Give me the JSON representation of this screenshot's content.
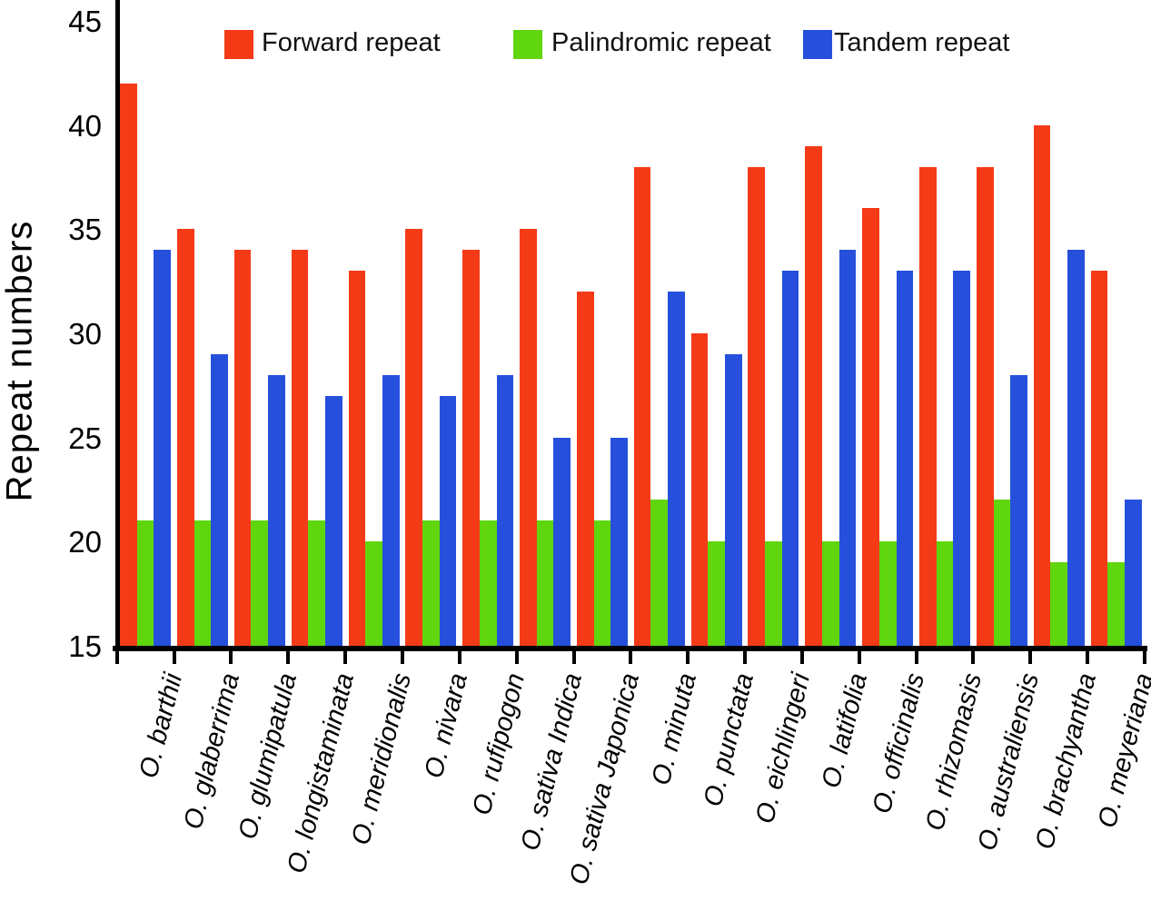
{
  "ylabel_text": "Repeat numbers",
  "legend": {
    "items": [
      {
        "label": "Forward repeat",
        "color": "#f53a18"
      },
      {
        "label": "Palindromic repeat",
        "color": "#5fd60e"
      },
      {
        "label": "Tandem repeat",
        "color": "#2650dc"
      }
    ]
  },
  "axis": {
    "y_tick_labels": [
      "45",
      "40",
      "35",
      "30",
      "25",
      "20",
      "15"
    ]
  },
  "chart_data": {
    "type": "bar",
    "title": "",
    "xlabel": "",
    "ylabel": "Repeat numbers",
    "ylim": [
      15,
      45
    ],
    "yticks": [
      45,
      40,
      35,
      30,
      25,
      20,
      15
    ],
    "grid": false,
    "legend_position": "top",
    "categories": [
      "O. barthii",
      "O. glaberrima",
      "O. glumipatula",
      "O. longistaminata",
      "O. meridionalis",
      "O. nivara",
      "O. rufipogon",
      "O. sativa Indica",
      "O. sativa Japonica",
      "O. minuta",
      "O. punctata",
      "O. eichlingeri",
      "O. latifolia",
      "O. officinalis",
      "O. rhizomasis",
      "O. australiensis",
      "O. brachyantha",
      "O. meyeriana"
    ],
    "series": [
      {
        "name": "Forward repeat",
        "color": "#f53a18",
        "values": [
          42,
          35,
          34,
          34,
          33,
          35,
          34,
          35,
          32,
          38,
          30,
          38,
          39,
          36,
          38,
          38,
          40,
          33
        ]
      },
      {
        "name": "Palindromic repeat",
        "color": "#5fd60e",
        "values": [
          21,
          21,
          21,
          21,
          20,
          21,
          21,
          21,
          21,
          22,
          20,
          20,
          20,
          20,
          20,
          22,
          19,
          19
        ]
      },
      {
        "name": "Tandem repeat",
        "color": "#2650dc",
        "values": [
          34,
          29,
          28,
          27,
          28,
          27,
          28,
          25,
          25,
          32,
          29,
          33,
          34,
          33,
          33,
          28,
          34,
          22
        ]
      }
    ]
  }
}
